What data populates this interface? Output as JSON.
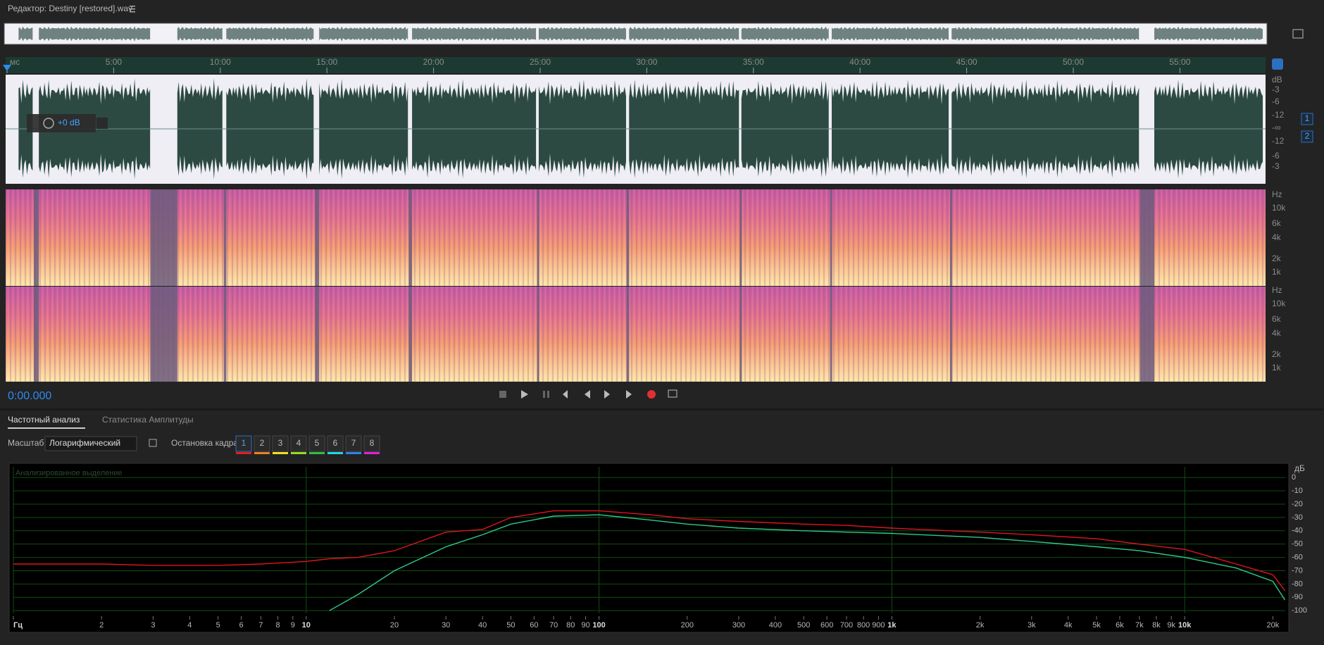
{
  "header": {
    "title": "Редактор: Destiny [restored].wav"
  },
  "timeline": {
    "labels": [
      "мс",
      "5:00",
      "10:00",
      "15:00",
      "20:00",
      "25:00",
      "30:00",
      "35:00",
      "40:00",
      "45:00",
      "50:00",
      "55:00"
    ]
  },
  "waveform": {
    "db_labels": [
      "dB",
      "-3",
      "-6",
      "-12",
      "-∞",
      "-12",
      "-6",
      "-3"
    ],
    "gain": "+0 dB",
    "channels": [
      "1",
      "2"
    ]
  },
  "spectral": {
    "labels": [
      "Hz",
      "10k",
      "6k",
      "4k",
      "2k",
      "1k"
    ]
  },
  "transport": {
    "time": "0:00.000"
  },
  "panel": {
    "tabs": [
      "Частотный анализ",
      "Статистика Амплитуды"
    ],
    "scale_label": "Масштаб:",
    "scale_value": "Логарифмический",
    "freeze_label": "Остановка кадра:",
    "freeze_buttons": [
      "1",
      "2",
      "3",
      "4",
      "5",
      "6",
      "7",
      "8"
    ]
  },
  "chart_data": {
    "type": "line",
    "annotation": "Анализированное выделение",
    "y_label": "дБ",
    "log_x": true,
    "grid": true,
    "x": [
      1,
      2,
      3,
      5,
      7,
      10,
      12,
      15,
      20,
      30,
      40,
      50,
      70,
      100,
      150,
      200,
      300,
      500,
      700,
      1000,
      2000,
      3000,
      5000,
      7000,
      10000,
      15000,
      20000,
      22000
    ],
    "series": [
      {
        "color": "#e0141e",
        "values": [
          -65,
          -65,
          -66,
          -66,
          -65,
          -63,
          -61,
          -60,
          -55,
          -41,
          -39,
          -30,
          -25,
          -25,
          -28,
          -31,
          -33,
          -35,
          -36,
          -38,
          -41,
          -43,
          -46,
          -50,
          -54,
          -65,
          -73,
          -85
        ]
      },
      {
        "color": "#2ec98a",
        "values": [
          null,
          null,
          null,
          null,
          null,
          null,
          -100,
          -88,
          -70,
          -52,
          -43,
          -35,
          -29,
          -28,
          -32,
          -35,
          -38,
          -40,
          -41,
          -42,
          -45,
          -48,
          -52,
          -55,
          -60,
          -68,
          -78,
          -92
        ]
      }
    ],
    "xlim": [
      1,
      22050
    ],
    "ylim": [
      -102,
      8
    ],
    "xticks": [
      {
        "value": 1,
        "label": "Гц"
      },
      2,
      3,
      4,
      5,
      6,
      7,
      8,
      9,
      10,
      20,
      30,
      40,
      50,
      60,
      70,
      80,
      90,
      100,
      200,
      300,
      400,
      500,
      600,
      700,
      800,
      900,
      {
        "value": 1000,
        "label": "1k"
      },
      {
        "value": 2000,
        "label": "2k"
      },
      {
        "value": 3000,
        "label": "3k"
      },
      {
        "value": 4000,
        "label": "4k"
      },
      {
        "value": 5000,
        "label": "5k"
      },
      {
        "value": 6000,
        "label": "6k"
      },
      {
        "value": 7000,
        "label": "7k"
      },
      {
        "value": 8000,
        "label": "8k"
      },
      {
        "value": 9000,
        "label": "9k"
      },
      {
        "value": 10000,
        "label": "10k"
      },
      {
        "value": 20000,
        "label": "20k"
      }
    ],
    "yticks": [
      0,
      -10,
      -20,
      -30,
      -40,
      -50,
      -60,
      -70,
      -80,
      -90,
      -100
    ]
  }
}
